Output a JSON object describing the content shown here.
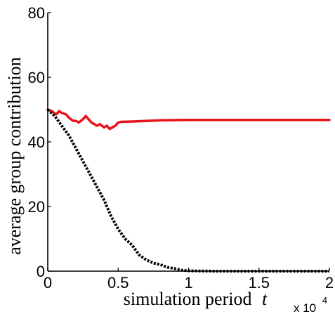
{
  "chart_data": {
    "type": "line",
    "title": "",
    "xlabel": "simulation period",
    "xlabel_variable": "t",
    "ylabel": "average group contribution",
    "x_multiplier_base": "x 10",
    "x_multiplier_exp": "4",
    "xlim": [
      0,
      2
    ],
    "ylim": [
      0,
      80
    ],
    "x_ticks": [
      0,
      0.5,
      1,
      1.5,
      2
    ],
    "x_tick_labels": [
      "0",
      "0.5",
      "1",
      "1.5",
      "2"
    ],
    "y_ticks": [
      0,
      20,
      40,
      60,
      80
    ],
    "y_tick_labels": [
      "0",
      "20",
      "40",
      "60",
      "80"
    ],
    "grid": false,
    "series": [
      {
        "color": "#e8141c",
        "style": "solid",
        "x": [
          0,
          0.03,
          0.06,
          0.08,
          0.1,
          0.13,
          0.15,
          0.18,
          0.2,
          0.22,
          0.25,
          0.27,
          0.29,
          0.31,
          0.33,
          0.35,
          0.37,
          0.4,
          0.42,
          0.44,
          0.46,
          0.48,
          0.5,
          0.52,
          0.6,
          0.7,
          0.8,
          1.0,
          1.2,
          1.5,
          1.8,
          2.0
        ],
        "y": [
          50,
          49.5,
          48.5,
          49.5,
          49,
          48.5,
          47.5,
          46.5,
          46.5,
          46,
          47,
          48,
          47,
          46,
          45.5,
          45,
          45.5,
          44.5,
          45,
          44,
          44.5,
          45,
          46,
          46.2,
          46.3,
          46.5,
          46.7,
          46.8,
          46.8,
          46.8,
          46.8,
          46.8
        ]
      },
      {
        "color": "#000000",
        "style": "dotted",
        "x": [
          0,
          0.05,
          0.1,
          0.15,
          0.2,
          0.25,
          0.3,
          0.35,
          0.4,
          0.45,
          0.5,
          0.55,
          0.6,
          0.65,
          0.7,
          0.75,
          0.8,
          0.85,
          0.9,
          0.95,
          1.0,
          1.1,
          1.2,
          1.5,
          2.0
        ],
        "y": [
          50,
          48,
          45,
          42,
          38,
          34,
          30,
          26,
          22,
          17,
          13,
          10,
          8,
          5,
          3.5,
          2.5,
          2,
          1.2,
          0.8,
          0.3,
          0.1,
          0.05,
          0,
          0,
          0
        ]
      }
    ]
  }
}
